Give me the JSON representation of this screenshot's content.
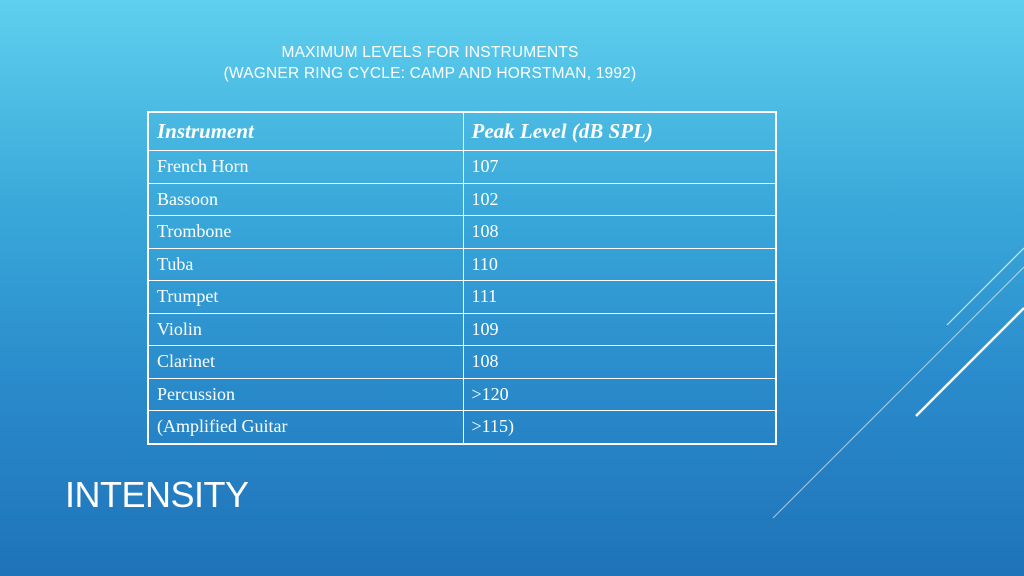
{
  "subtitle": {
    "line1": "MAXIMUM LEVELS FOR INSTRUMENTS",
    "line2": "(WAGNER RING CYCLE:  CAMP AND HORSTMAN, 1992)"
  },
  "table": {
    "headers": [
      "Instrument",
      "Peak Level (dB SPL)"
    ],
    "rows": [
      [
        "French Horn",
        "107"
      ],
      [
        "Bassoon",
        "102"
      ],
      [
        "Trombone",
        "108"
      ],
      [
        "Tuba",
        "110"
      ],
      [
        "Trumpet",
        "111"
      ],
      [
        "Violin",
        "109"
      ],
      [
        "Clarinet",
        "108"
      ],
      [
        "Percussion",
        ">120"
      ],
      [
        "(Amplified Guitar",
        ">115)"
      ]
    ]
  },
  "section_title": "INTENSITY",
  "colors": {
    "background_top": "#5fd0ee",
    "background_bottom": "#1f73b8",
    "text": "#ffffff"
  }
}
